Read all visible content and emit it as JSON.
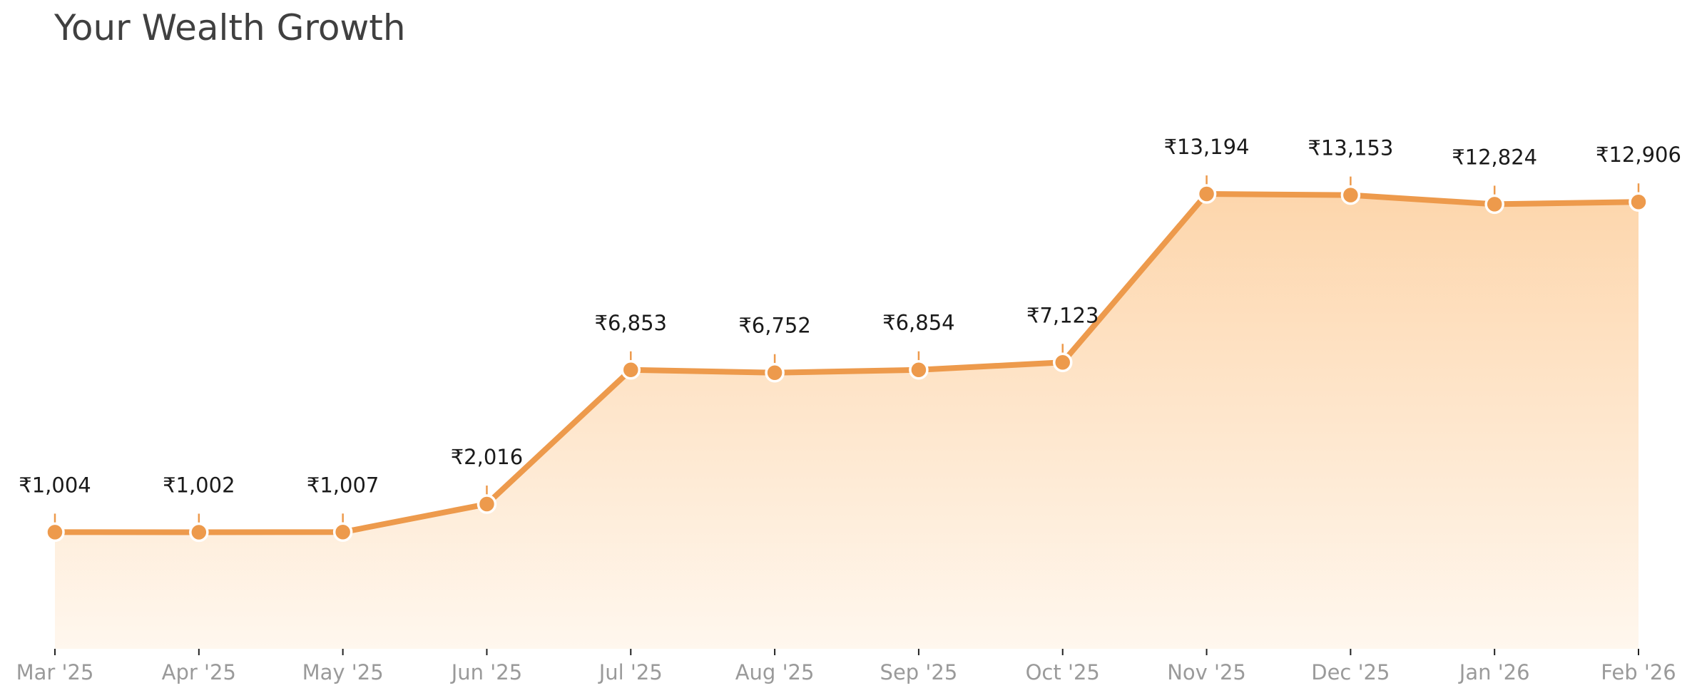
{
  "title": "Your Wealth Growth",
  "colors": {
    "line": "#ED9A4C",
    "fill_top": "#FDD6AC",
    "fill_bottom": "#FFF7EE",
    "marker_edge": "#ffffff",
    "value_text": "#1a1a1a",
    "tick_text": "#9a9a9a",
    "axis": "#222222"
  },
  "chart_data": {
    "type": "area",
    "title": "Your Wealth Growth",
    "xlabel": "",
    "ylabel": "",
    "categories": [
      "Mar '25",
      "Apr '25",
      "May '25",
      "Jun '25",
      "Jul '25",
      "Aug '25",
      "Sep '25",
      "Oct '25",
      "Nov '25",
      "Dec '25",
      "Jan '26",
      "Feb '26"
    ],
    "series": [
      {
        "values": [
          1004,
          1002,
          1007,
          2016,
          6853,
          6752,
          6854,
          7123,
          13194,
          13153,
          12824,
          12906
        ],
        "labels": [
          "₹1,004",
          "₹1,002",
          "₹1,007",
          "₹2,016",
          "₹6,853",
          "₹6,752",
          "₹6,854",
          "₹7,123",
          "₹13,194",
          "₹13,153",
          "₹12,824",
          "₹12,906"
        ]
      }
    ],
    "ylim": [
      -3200,
      18000
    ],
    "grid": false,
    "legend": "none",
    "y_axis_visible": false
  }
}
